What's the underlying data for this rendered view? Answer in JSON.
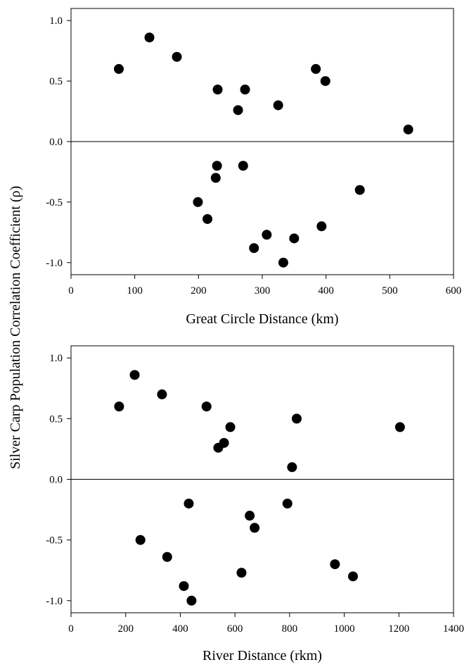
{
  "shared_ylabel": "Silver Carp Population Correlation  Coefficient (ρ)",
  "chart_data": [
    {
      "type": "scatter",
      "xlabel": "Great Circle Distance (km)",
      "ylabel": "Silver Carp Population Correlation  Coefficient (ρ)",
      "xlim": [
        0,
        600
      ],
      "ylim": [
        -1.1,
        1.1
      ],
      "xticks": [
        0,
        100,
        200,
        300,
        400,
        500,
        600
      ],
      "yticks": [
        1.0,
        0.5,
        0.0,
        -0.5,
        -1.0
      ],
      "xtick_labels": [
        "0",
        "100",
        "200",
        "300",
        "400",
        "500",
        "600"
      ],
      "ytick_labels": [
        "1.0",
        "0.5",
        "0.0",
        "-0.5",
        "-1.0"
      ],
      "reference_line_y": 0,
      "marker_color": "#000000",
      "points": [
        {
          "x": 75,
          "y": 0.6
        },
        {
          "x": 123,
          "y": 0.86
        },
        {
          "x": 166,
          "y": 0.7
        },
        {
          "x": 230,
          "y": 0.43
        },
        {
          "x": 273,
          "y": 0.43
        },
        {
          "x": 262,
          "y": 0.26
        },
        {
          "x": 325,
          "y": 0.3
        },
        {
          "x": 384,
          "y": 0.6
        },
        {
          "x": 399,
          "y": 0.5
        },
        {
          "x": 529,
          "y": 0.1
        },
        {
          "x": 229,
          "y": -0.2
        },
        {
          "x": 270,
          "y": -0.2
        },
        {
          "x": 227,
          "y": -0.3
        },
        {
          "x": 199,
          "y": -0.5
        },
        {
          "x": 214,
          "y": -0.64
        },
        {
          "x": 453,
          "y": -0.4
        },
        {
          "x": 307,
          "y": -0.77
        },
        {
          "x": 350,
          "y": -0.8
        },
        {
          "x": 393,
          "y": -0.7
        },
        {
          "x": 287,
          "y": -0.88
        },
        {
          "x": 333,
          "y": -1.0
        }
      ]
    },
    {
      "type": "scatter",
      "xlabel": "River Distance (rkm)",
      "ylabel": "Silver Carp Population Correlation  Coefficient (ρ)",
      "xlim": [
        0,
        1400
      ],
      "ylim": [
        -1.1,
        1.1
      ],
      "xticks": [
        0,
        200,
        400,
        600,
        800,
        1000,
        1200,
        1400
      ],
      "yticks": [
        1.0,
        0.5,
        0.0,
        -0.5,
        -1.0
      ],
      "xtick_labels": [
        "0",
        "200",
        "400",
        "600",
        "800",
        "1000",
        "1200",
        "1400"
      ],
      "ytick_labels": [
        "1.0",
        "0.5",
        "0.0",
        "-0.5",
        "-1.0"
      ],
      "reference_line_y": 0,
      "marker_color": "#000000",
      "points": [
        {
          "x": 176,
          "y": 0.6
        },
        {
          "x": 233,
          "y": 0.86
        },
        {
          "x": 333,
          "y": 0.7
        },
        {
          "x": 496,
          "y": 0.6
        },
        {
          "x": 583,
          "y": 0.43
        },
        {
          "x": 560,
          "y": 0.3
        },
        {
          "x": 539,
          "y": 0.26
        },
        {
          "x": 826,
          "y": 0.5
        },
        {
          "x": 809,
          "y": 0.1
        },
        {
          "x": 1204,
          "y": 0.43
        },
        {
          "x": 431,
          "y": -0.2
        },
        {
          "x": 792,
          "y": -0.2
        },
        {
          "x": 654,
          "y": -0.3
        },
        {
          "x": 672,
          "y": -0.4
        },
        {
          "x": 254,
          "y": -0.5
        },
        {
          "x": 352,
          "y": -0.64
        },
        {
          "x": 413,
          "y": -0.88
        },
        {
          "x": 441,
          "y": -1.0
        },
        {
          "x": 624,
          "y": -0.77
        },
        {
          "x": 966,
          "y": -0.7
        },
        {
          "x": 1032,
          "y": -0.8
        }
      ]
    }
  ]
}
